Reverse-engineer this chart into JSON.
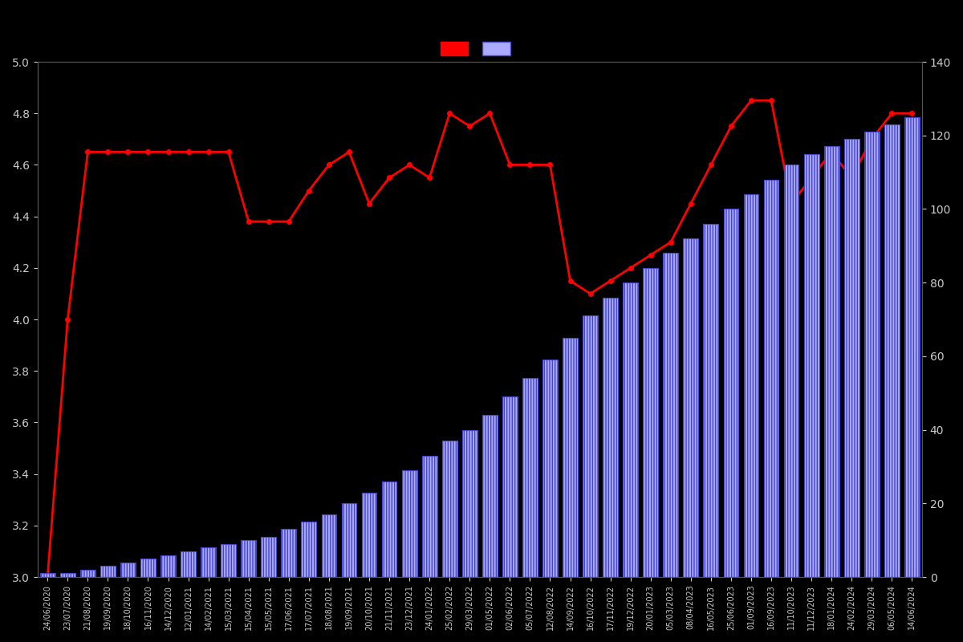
{
  "background_color": "#000000",
  "text_color": "#cccccc",
  "left_ylim": [
    3.0,
    5.0
  ],
  "right_ylim": [
    0,
    140
  ],
  "left_yticks": [
    3.0,
    3.2,
    3.4,
    3.6,
    3.8,
    4.0,
    4.2,
    4.4,
    4.6,
    4.8,
    5.0
  ],
  "right_yticks": [
    0,
    20,
    40,
    60,
    80,
    100,
    120,
    140
  ],
  "dates": [
    "24/06/2020",
    "23/07/2020",
    "21/08/2020",
    "19/09/2020",
    "18/10/2020",
    "16/11/2020",
    "14/12/2020",
    "12/01/2021",
    "14/02/2021",
    "15/03/2021",
    "15/04/2021",
    "15/05/2021",
    "17/06/2021",
    "17/07/2021",
    "18/08/2021",
    "19/09/2021",
    "20/10/2021",
    "21/11/2021",
    "23/12/2021",
    "24/01/2022",
    "25/02/2022",
    "29/03/2022",
    "01/05/2022",
    "02/06/2022",
    "05/07/2022",
    "12/08/2022",
    "14/09/2022",
    "16/10/2022",
    "17/11/2022",
    "19/12/2022",
    "20/01/2023",
    "05/03/2023",
    "08/04/2023",
    "16/05/2023",
    "25/06/2023",
    "01/09/2023",
    "16/09/2023",
    "11/10/2023",
    "11/12/2023",
    "18/01/2024",
    "24/02/2024",
    "29/03/2024",
    "06/05/2024",
    "14/06/2024"
  ],
  "ratings": [
    3.0,
    4.0,
    4.65,
    4.65,
    4.65,
    4.65,
    4.65,
    4.65,
    4.65,
    4.65,
    4.38,
    4.38,
    4.38,
    4.5,
    4.6,
    4.65,
    4.45,
    4.55,
    4.6,
    4.55,
    4.8,
    4.75,
    4.8,
    4.6,
    4.6,
    4.6,
    4.15,
    4.1,
    4.15,
    4.2,
    4.25,
    4.3,
    4.45,
    4.6,
    4.75,
    4.85,
    4.85,
    4.45,
    4.55,
    4.65,
    4.55,
    4.7,
    4.8,
    4.8
  ],
  "counts": [
    1,
    1,
    2,
    3,
    4,
    5,
    6,
    7,
    8,
    9,
    10,
    11,
    13,
    15,
    17,
    20,
    23,
    26,
    29,
    33,
    37,
    40,
    44,
    49,
    54,
    59,
    65,
    71,
    76,
    80,
    84,
    88,
    92,
    96,
    100,
    104,
    108,
    112,
    115,
    117,
    119,
    121,
    123,
    125
  ],
  "line_color": "#ff0000",
  "bar_color": "#aaaaff",
  "bar_edge_color": "#4444cc",
  "line_width": 2.0,
  "marker_size": 4.0
}
